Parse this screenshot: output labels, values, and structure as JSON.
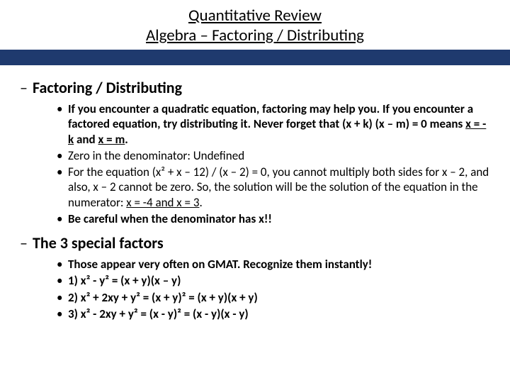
{
  "title": {
    "line1": "Quantitative Review",
    "line2": "Algebra – Factoring / Distributing"
  },
  "colors": {
    "band": "#1f3a6e",
    "background": "#ffffff",
    "text": "#000000"
  },
  "sections": [
    {
      "header": "Factoring / Distributing",
      "bullets": [
        {
          "bold": true,
          "pre": "If you encounter a quadratic equation, factoring may help you. If you encounter a factored equation, try distributing it. Never forget that (x + k) (x – m) = 0 means ",
          "ul1": "x = -k",
          "mid": " and ",
          "ul2": "x = m",
          "post": "."
        },
        {
          "plain": "Zero in the denominator: Undefined"
        },
        {
          "pre": "For the equation (x² + x – 12) / (x – 2) = 0, you cannot multiply both sides for x – 2, and also, x – 2 cannot be zero. So, the solution will be the solution of the equation in the numerator: ",
          "ul1": "x = -4 and x = 3",
          "post": "."
        },
        {
          "bold": true,
          "plain": "Be careful when the denominator has x!!"
        }
      ]
    },
    {
      "header": "The 3 special factors",
      "bullets": [
        {
          "bold": true,
          "plain": "Those appear very often on GMAT. Recognize them instantly!"
        },
        {
          "bold": true,
          "plain": "1) x² - y² = (x + y)(x – y)"
        },
        {
          "bold": true,
          "plain": "2) x² + 2xy + y² = (x + y)² = (x + y)(x + y)"
        },
        {
          "bold": true,
          "plain": "3) x² - 2xy + y² = (x - y)² = (x - y)(x - y)"
        }
      ]
    }
  ]
}
